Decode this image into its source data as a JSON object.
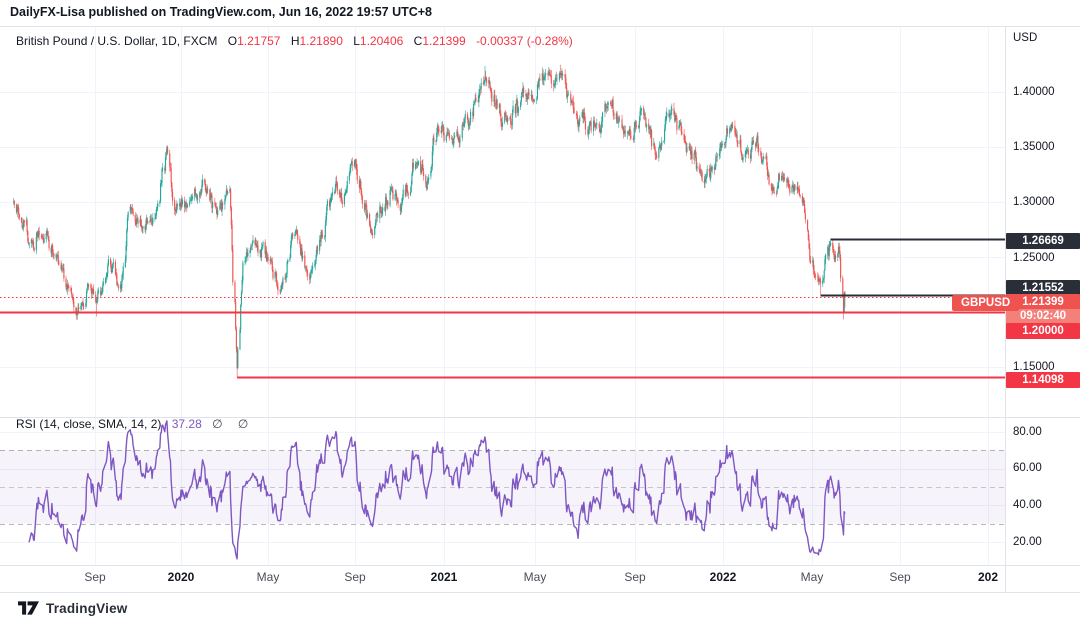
{
  "byline": "DailyFX-Lisa published on TradingView.com, Jun 16, 2022 19:57 UTC+8",
  "legend": {
    "title": "British Pound / U.S. Dollar, 1D, FXCM",
    "o_label": "O",
    "o_value": "1.21757",
    "h_label": "H",
    "h_value": "1.21890",
    "l_label": "L",
    "l_value": "1.20406",
    "c_label": "C",
    "c_value": "1.21399",
    "change": "-0.00337 (-0.28%)"
  },
  "rsi_legend": {
    "title": "RSI (14, close, SMA, 14, 2)",
    "value": "37.28",
    "empty_values": "∅ ∅"
  },
  "price_axis": {
    "currency": "USD",
    "ticks": [
      "1.40000",
      "1.35000",
      "1.30000",
      "1.25000",
      "1.15000"
    ],
    "rsi_ticks": [
      "80.00",
      "60.00",
      "40.00",
      "20.00"
    ],
    "badges": [
      {
        "text": "1.26669",
        "bg": "dark"
      },
      {
        "text": "1.21552",
        "bg": "dark"
      },
      {
        "text": "1.21399",
        "bg": "red",
        "countdown": "09:02:40",
        "symbol": "GBPUSD"
      },
      {
        "text": "1.20000",
        "bg": "red"
      },
      {
        "text": "1.14098",
        "bg": "red"
      }
    ]
  },
  "time_axis": {
    "ticks": [
      {
        "label": "Sep",
        "year": false
      },
      {
        "label": "2020",
        "year": true
      },
      {
        "label": "May",
        "year": false
      },
      {
        "label": "Sep",
        "year": false
      },
      {
        "label": "2021",
        "year": true
      },
      {
        "label": "May",
        "year": false
      },
      {
        "label": "Sep",
        "year": false
      },
      {
        "label": "2022",
        "year": true
      },
      {
        "label": "May",
        "year": false
      },
      {
        "label": "Sep",
        "year": false
      },
      {
        "label": "202",
        "year": true
      }
    ]
  },
  "footer": {
    "brand": "TradingView"
  },
  "colors": {
    "up": "#26a69a",
    "down": "#ef5350",
    "alert_red": "#f23645",
    "trend_black": "#2a2e39",
    "rsi_purple": "#7e57c2",
    "grid": "#f0f3fa",
    "border": "#e0e3eb"
  },
  "chart_data": {
    "type": "candlestick",
    "symbol": "British Pound / U.S. Dollar",
    "ticker": "GBPUSD",
    "interval": "1D",
    "exchange": "FXCM",
    "visible_range": [
      "2019-05-09",
      "2022-06-16"
    ],
    "ylim": [
      1.132,
      1.458
    ],
    "price_ticks": [
      1.4,
      1.35,
      1.3,
      1.25,
      1.2,
      1.15
    ],
    "last_bar": {
      "open": 1.21757,
      "high": 1.2189,
      "low": 1.20406,
      "close": 1.21399,
      "change": -0.00337,
      "change_pct": -0.28
    },
    "close_anchors": [
      [
        "2019-05-09",
        1.301
      ],
      [
        "2019-05-31",
        1.2625
      ],
      [
        "2019-06-25",
        1.2735
      ],
      [
        "2019-07-05",
        1.252
      ],
      [
        "2019-07-30",
        1.2155
      ],
      [
        "2019-08-09",
        1.203
      ],
      [
        "2019-08-22",
        1.225
      ],
      [
        "2019-09-03",
        1.2085
      ],
      [
        "2019-09-20",
        1.248
      ],
      [
        "2019-10-08",
        1.2215
      ],
      [
        "2019-10-21",
        1.296
      ],
      [
        "2019-11-08",
        1.2775
      ],
      [
        "2019-11-27",
        1.2935
      ],
      [
        "2019-12-12",
        1.35
      ],
      [
        "2019-12-23",
        1.2925
      ],
      [
        "2020-01-14",
        1.302
      ],
      [
        "2020-01-31",
        1.3205
      ],
      [
        "2020-02-20",
        1.2885
      ],
      [
        "2020-03-09",
        1.3115
      ],
      [
        "2020-03-19",
        1.149
      ],
      [
        "2020-03-27",
        1.245
      ],
      [
        "2020-04-14",
        1.2625
      ],
      [
        "2020-05-01",
        1.247
      ],
      [
        "2020-05-18",
        1.219
      ],
      [
        "2020-06-10",
        1.2745
      ],
      [
        "2020-06-29",
        1.2295
      ],
      [
        "2020-07-31",
        1.309
      ],
      [
        "2020-08-19",
        1.3095
      ],
      [
        "2020-09-01",
        1.3385
      ],
      [
        "2020-09-23",
        1.272
      ],
      [
        "2020-10-21",
        1.3135
      ],
      [
        "2020-11-02",
        1.292
      ],
      [
        "2020-11-24",
        1.3355
      ],
      [
        "2020-12-11",
        1.3225
      ],
      [
        "2020-12-17",
        1.358
      ],
      [
        "2021-01-06",
        1.362
      ],
      [
        "2021-01-27",
        1.369
      ],
      [
        "2021-02-24",
        1.414
      ],
      [
        "2021-03-25",
        1.373
      ],
      [
        "2021-04-20",
        1.3935
      ],
      [
        "2021-05-18",
        1.4185
      ],
      [
        "2021-06-01",
        1.4155
      ],
      [
        "2021-06-18",
        1.381
      ],
      [
        "2021-07-20",
        1.363
      ],
      [
        "2021-07-30",
        1.39
      ],
      [
        "2021-08-20",
        1.3625
      ],
      [
        "2021-09-14",
        1.3805
      ],
      [
        "2021-09-29",
        1.343
      ],
      [
        "2021-10-19",
        1.379
      ],
      [
        "2021-11-09",
        1.3555
      ],
      [
        "2021-11-30",
        1.329
      ],
      [
        "2021-12-08",
        1.3215
      ],
      [
        "2021-12-31",
        1.353
      ],
      [
        "2022-01-13",
        1.3705
      ],
      [
        "2022-01-27",
        1.3385
      ],
      [
        "2022-02-10",
        1.3555
      ],
      [
        "2022-02-28",
        1.3415
      ],
      [
        "2022-03-08",
        1.3105
      ],
      [
        "2022-03-23",
        1.3205
      ],
      [
        "2022-04-13",
        1.3115
      ],
      [
        "2022-04-22",
        1.284
      ],
      [
        "2022-04-28",
        1.2465
      ],
      [
        "2022-05-13",
        1.226
      ],
      [
        "2022-05-27",
        1.263
      ],
      [
        "2022-06-01",
        1.248
      ],
      [
        "2022-06-07",
        1.259
      ],
      [
        "2022-06-09",
        1.249
      ],
      [
        "2022-06-13",
        1.2135
      ],
      [
        "2022-06-14",
        1.1995
      ],
      [
        "2022-06-15",
        1.2174
      ],
      [
        "2022-06-16",
        1.21399
      ]
    ],
    "wick_overrides": [
      [
        "2019-09-03",
        "low",
        1.1959
      ],
      [
        "2019-12-12",
        "high",
        1.3516
      ],
      [
        "2020-03-19",
        "low",
        1.1409
      ],
      [
        "2021-02-24",
        "high",
        1.4237
      ],
      [
        "2021-06-01",
        "high",
        1.4248
      ],
      [
        "2022-05-13",
        "low",
        1.21552
      ],
      [
        "2022-05-27",
        "high",
        1.26669
      ],
      [
        "2022-06-14",
        "low",
        1.1934
      ]
    ],
    "levels": [
      {
        "price": 1.26669,
        "style": "solid",
        "color": "#2a2e39",
        "width": 2,
        "from": "2022-05-27"
      },
      {
        "price": 1.21552,
        "style": "solid",
        "color": "#2a2e39",
        "width": 2,
        "from": "2022-05-13"
      },
      {
        "price": 1.21399,
        "style": "dotted",
        "color": "#f23645",
        "width": 1,
        "from": "start"
      },
      {
        "price": 1.2,
        "style": "solid",
        "color": "#f23645",
        "width": 2,
        "from": "start"
      },
      {
        "price": 1.14098,
        "style": "solid",
        "color": "#f23645",
        "width": 2,
        "from": "2020-03-19"
      }
    ],
    "rsi_pane": {
      "type": "line",
      "indicator": "RSI",
      "period": 14,
      "source": "close",
      "smoothing": [
        "SMA",
        14,
        2
      ],
      "last": 37.28,
      "bands": [
        70,
        50,
        30
      ],
      "band_fill": "rgba(126,87,194,0.07)",
      "ticks": [
        80,
        60,
        40,
        20
      ],
      "ylim": [
        10,
        92
      ]
    }
  }
}
